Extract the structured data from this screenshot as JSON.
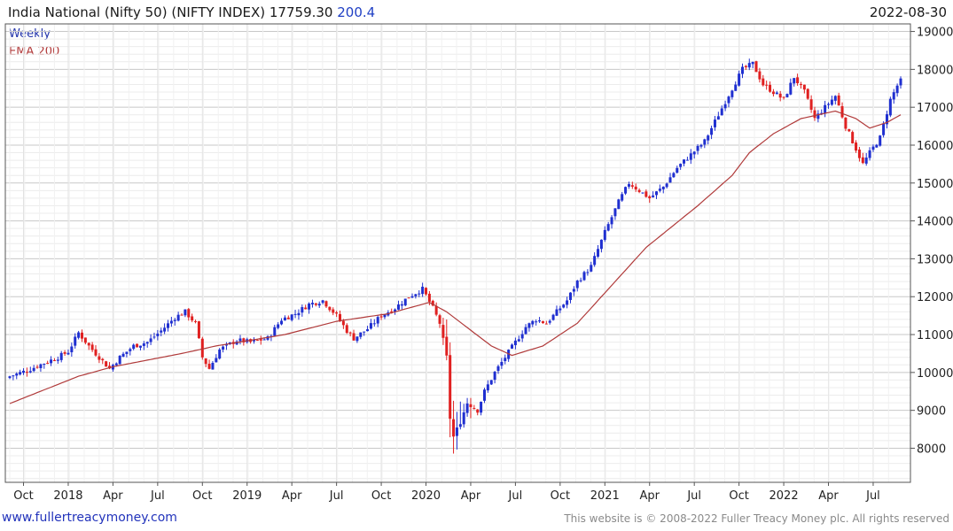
{
  "header": {
    "title": "India National (Nifty 50) (NIFTY INDEX)",
    "last": "17759.30",
    "change": "200.4",
    "date": "2022-08-30"
  },
  "legend": {
    "weekly": "Weekly",
    "ema": "EMA 200"
  },
  "footer": {
    "site": "www.fullertreacymoney.com",
    "copyright": "This website is © 2008-2022 Fuller Treacy Money plc. All rights reserved"
  },
  "colors": {
    "up": "#1f2fd0",
    "down": "#e02020",
    "ema": "#b03a3a",
    "grid": "#dcdcdc"
  },
  "chart_data": {
    "type": "candlestick",
    "title": "India National (Nifty 50) (NIFTY INDEX) weekly",
    "x_range": [
      0,
      259
    ],
    "ylim": [
      7100,
      19200
    ],
    "y_ticks": [
      8000,
      9000,
      10000,
      11000,
      12000,
      13000,
      14000,
      15000,
      16000,
      17000,
      18000,
      19000
    ],
    "x_ticks": [
      {
        "label": "Oct",
        "week": 4
      },
      {
        "label": "2018",
        "week": 17
      },
      {
        "label": "Apr",
        "week": 30
      },
      {
        "label": "Jul",
        "week": 43
      },
      {
        "label": "Oct",
        "week": 56
      },
      {
        "label": "2019",
        "week": 69
      },
      {
        "label": "Apr",
        "week": 82
      },
      {
        "label": "Jul",
        "week": 95
      },
      {
        "label": "Oct",
        "week": 108
      },
      {
        "label": "2020",
        "week": 121
      },
      {
        "label": "Apr",
        "week": 134
      },
      {
        "label": "Jul",
        "week": 147
      },
      {
        "label": "Oct",
        "week": 160
      },
      {
        "label": "2021",
        "week": 173
      },
      {
        "label": "Apr",
        "week": 186
      },
      {
        "label": "Jul",
        "week": 199
      },
      {
        "label": "Oct",
        "week": 212
      },
      {
        "label": "2022",
        "week": 225
      },
      {
        "label": "Apr",
        "week": 238
      },
      {
        "label": "Jul",
        "week": 251
      }
    ],
    "close_anchors": [
      [
        0,
        9900
      ],
      [
        5,
        10050
      ],
      [
        10,
        10250
      ],
      [
        14,
        10400
      ],
      [
        17,
        10550
      ],
      [
        20,
        11050
      ],
      [
        23,
        10700
      ],
      [
        26,
        10400
      ],
      [
        29,
        10100
      ],
      [
        32,
        10400
      ],
      [
        36,
        10700
      ],
      [
        40,
        10800
      ],
      [
        44,
        11100
      ],
      [
        48,
        11450
      ],
      [
        51,
        11600
      ],
      [
        54,
        11300
      ],
      [
        56,
        10400
      ],
      [
        58,
        10100
      ],
      [
        61,
        10600
      ],
      [
        66,
        10850
      ],
      [
        70,
        10800
      ],
      [
        75,
        10900
      ],
      [
        79,
        11400
      ],
      [
        83,
        11550
      ],
      [
        87,
        11800
      ],
      [
        91,
        11900
      ],
      [
        95,
        11500
      ],
      [
        98,
        11100
      ],
      [
        100,
        10900
      ],
      [
        104,
        11150
      ],
      [
        108,
        11500
      ],
      [
        112,
        11700
      ],
      [
        116,
        12000
      ],
      [
        120,
        12200
      ],
      [
        123,
        11700
      ],
      [
        125,
        11300
      ],
      [
        127,
        10400
      ],
      [
        128,
        8800
      ],
      [
        129,
        8300
      ],
      [
        131,
        8700
      ],
      [
        133,
        9200
      ],
      [
        136,
        9000
      ],
      [
        138,
        9500
      ],
      [
        141,
        10000
      ],
      [
        144,
        10400
      ],
      [
        147,
        10800
      ],
      [
        150,
        11200
      ],
      [
        153,
        11400
      ],
      [
        156,
        11300
      ],
      [
        159,
        11600
      ],
      [
        162,
        11900
      ],
      [
        165,
        12400
      ],
      [
        169,
        12800
      ],
      [
        173,
        13700
      ],
      [
        177,
        14500
      ],
      [
        180,
        15000
      ],
      [
        183,
        14800
      ],
      [
        186,
        14600
      ],
      [
        190,
        14900
      ],
      [
        194,
        15400
      ],
      [
        198,
        15750
      ],
      [
        202,
        16100
      ],
      [
        206,
        16800
      ],
      [
        210,
        17500
      ],
      [
        213,
        18000
      ],
      [
        216,
        18150
      ],
      [
        219,
        17600
      ],
      [
        222,
        17400
      ],
      [
        225,
        17200
      ],
      [
        228,
        17800
      ],
      [
        231,
        17400
      ],
      [
        234,
        16700
      ],
      [
        237,
        17000
      ],
      [
        240,
        17300
      ],
      [
        243,
        16500
      ],
      [
        246,
        15900
      ],
      [
        248,
        15500
      ],
      [
        250,
        15800
      ],
      [
        253,
        16200
      ],
      [
        256,
        17200
      ],
      [
        259,
        17759.3
      ]
    ],
    "ema_anchors": [
      [
        0,
        9180
      ],
      [
        20,
        9900
      ],
      [
        30,
        10150
      ],
      [
        50,
        10500
      ],
      [
        60,
        10700
      ],
      [
        80,
        11000
      ],
      [
        95,
        11350
      ],
      [
        110,
        11550
      ],
      [
        122,
        11850
      ],
      [
        127,
        11600
      ],
      [
        140,
        10700
      ],
      [
        146,
        10450
      ],
      [
        155,
        10700
      ],
      [
        165,
        11300
      ],
      [
        175,
        12300
      ],
      [
        185,
        13300
      ],
      [
        200,
        14400
      ],
      [
        210,
        15200
      ],
      [
        215,
        15800
      ],
      [
        222,
        16300
      ],
      [
        230,
        16700
      ],
      [
        240,
        16900
      ],
      [
        246,
        16700
      ],
      [
        250,
        16450
      ],
      [
        255,
        16600
      ],
      [
        259,
        16800
      ]
    ]
  }
}
